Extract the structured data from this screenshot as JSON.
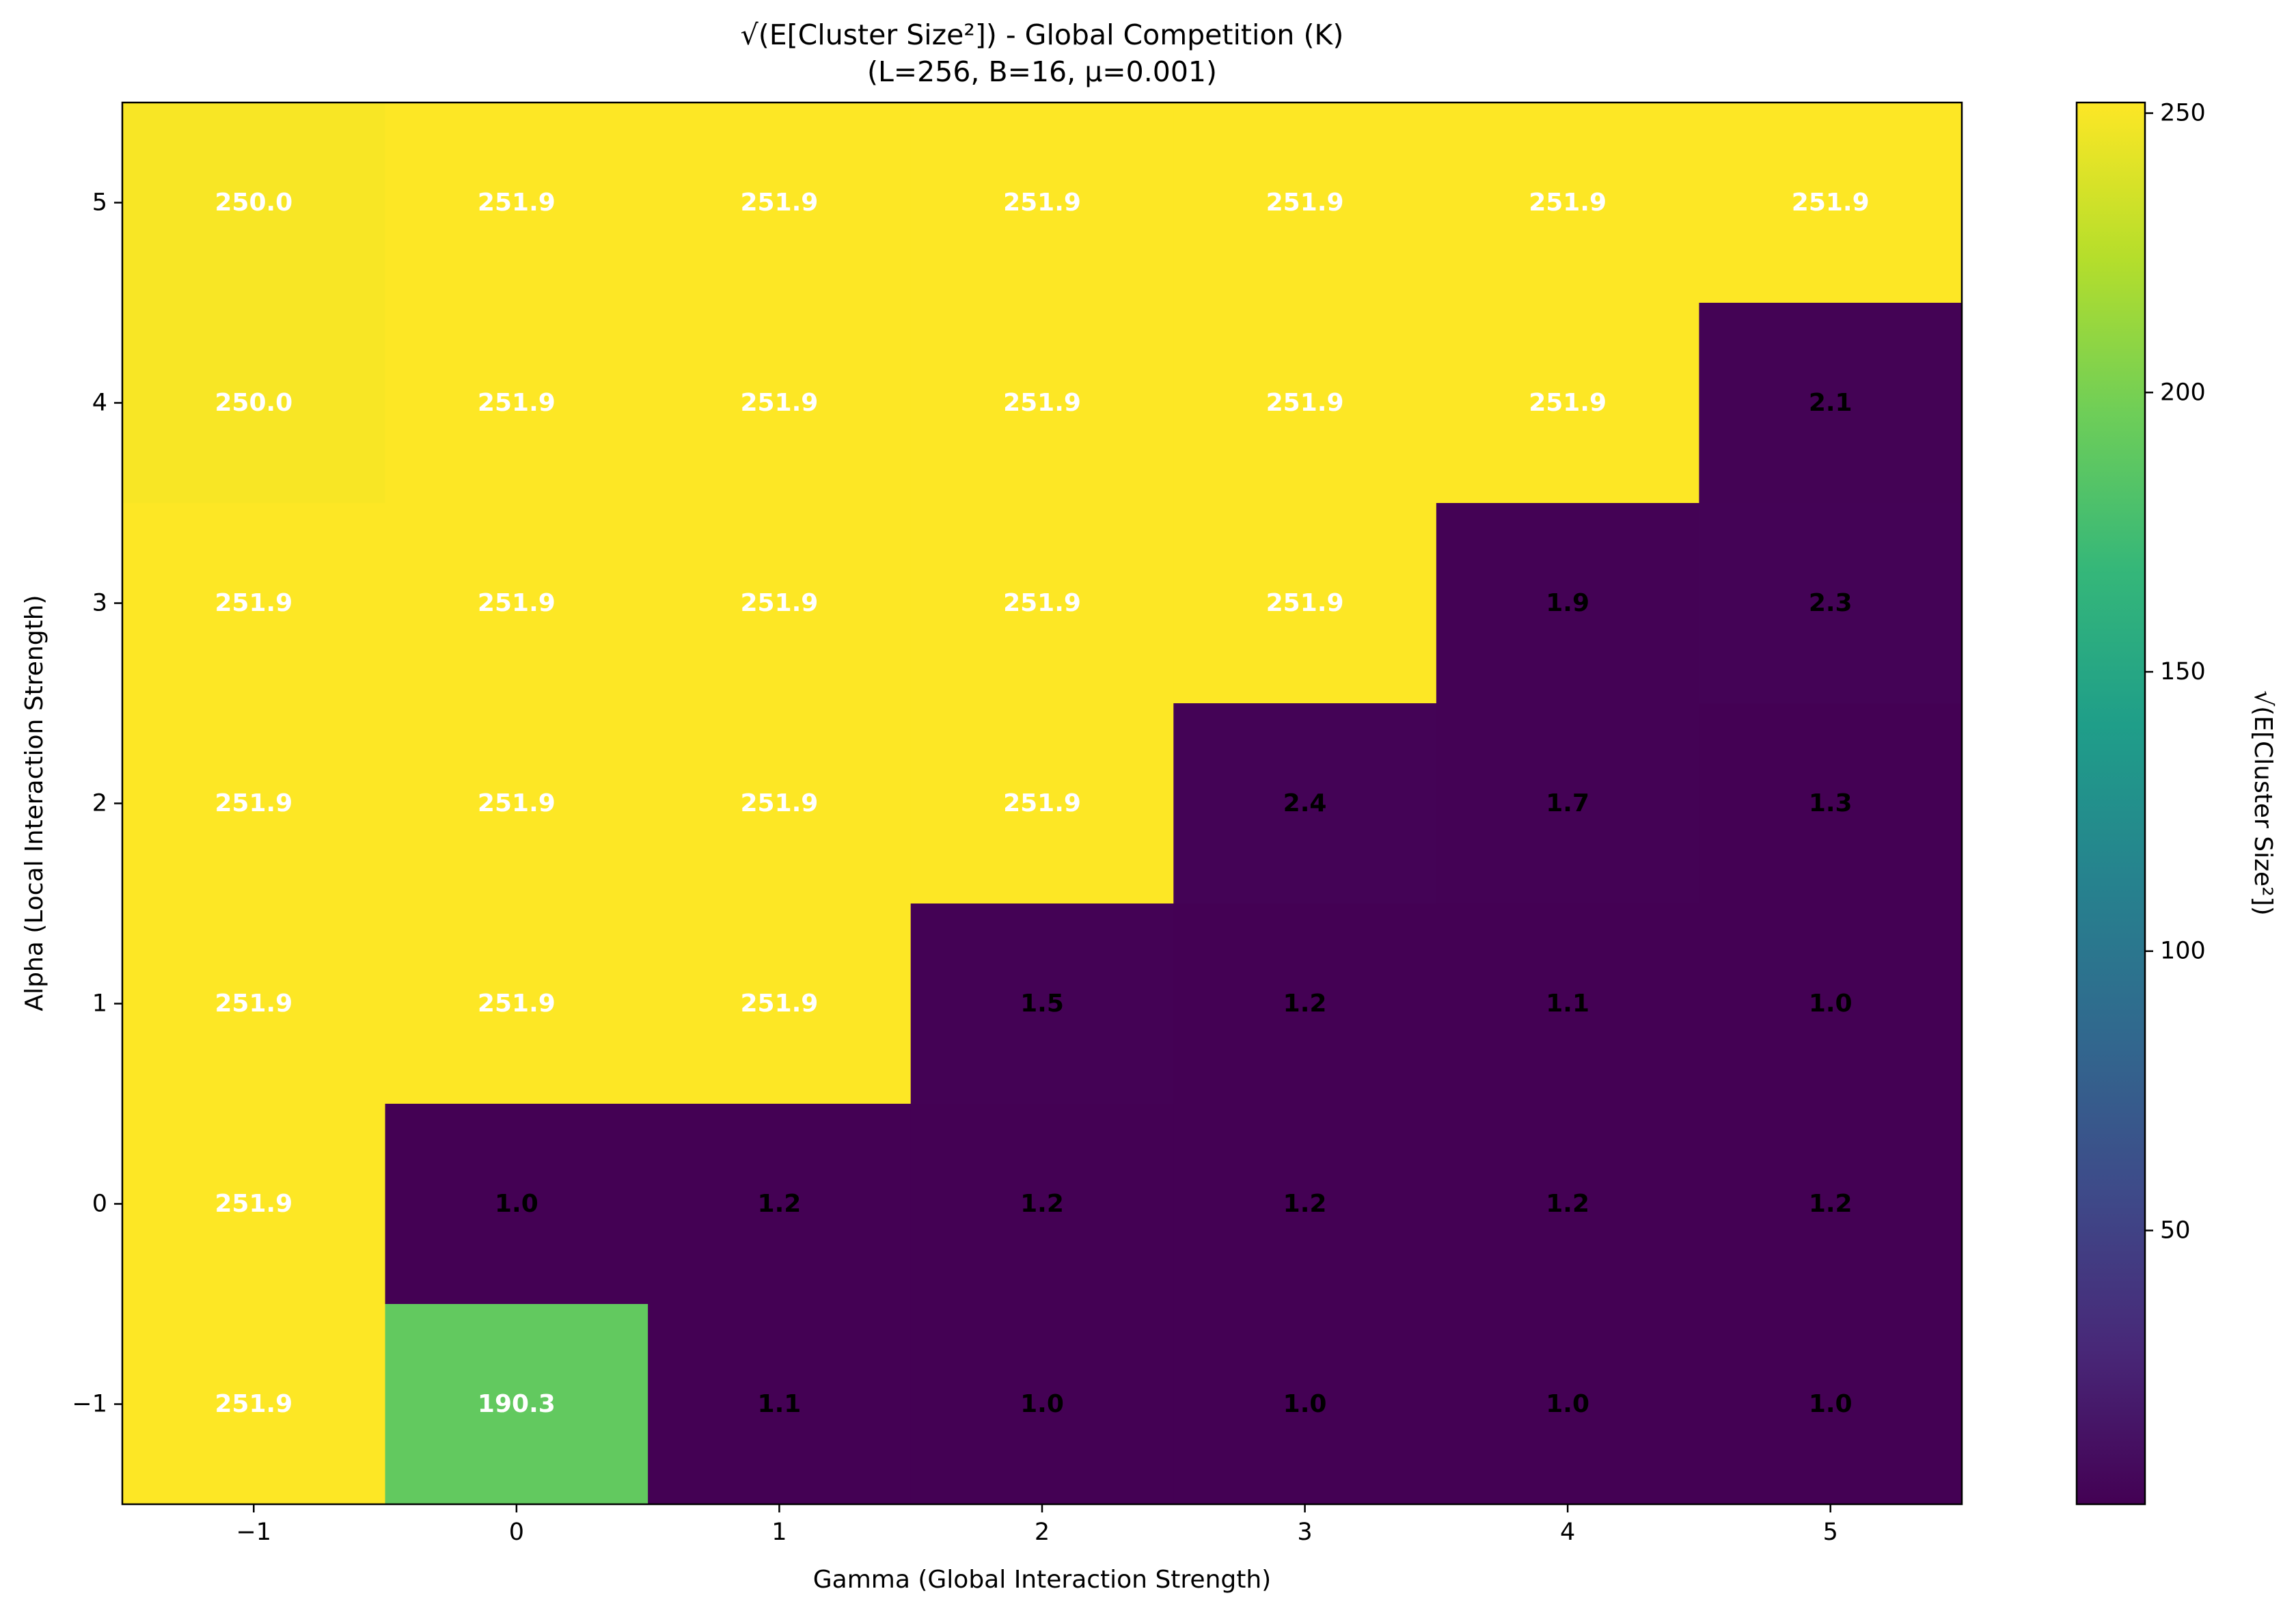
{
  "chart_data": {
    "type": "heatmap",
    "title": "√(E[Cluster Size²]) - Global Competition (K)",
    "subtitle": "(L=256, B=16, μ=0.001)",
    "xlabel": "Gamma (Global Interaction Strength)",
    "ylabel": "Alpha (Local Interaction Strength)",
    "x": [
      -1,
      0,
      1,
      2,
      3,
      4,
      5
    ],
    "y": [
      5,
      4,
      3,
      2,
      1,
      0,
      -1
    ],
    "x_tick_labels": [
      "−1",
      "0",
      "1",
      "2",
      "3",
      "4",
      "5"
    ],
    "y_tick_labels": [
      "5",
      "4",
      "3",
      "2",
      "1",
      "0",
      "−1"
    ],
    "values": [
      [
        250.0,
        251.9,
        251.9,
        251.9,
        251.9,
        251.9,
        251.9
      ],
      [
        250.0,
        251.9,
        251.9,
        251.9,
        251.9,
        251.9,
        2.1
      ],
      [
        251.9,
        251.9,
        251.9,
        251.9,
        251.9,
        1.9,
        2.3
      ],
      [
        251.9,
        251.9,
        251.9,
        251.9,
        2.4,
        1.7,
        1.3
      ],
      [
        251.9,
        251.9,
        251.9,
        1.5,
        1.2,
        1.1,
        1.0
      ],
      [
        251.9,
        1.0,
        1.2,
        1.2,
        1.2,
        1.2,
        1.2
      ],
      [
        251.9,
        190.3,
        1.1,
        1.0,
        1.0,
        1.0,
        1.0
      ]
    ],
    "cell_labels": [
      [
        "250.0",
        "251.9",
        "251.9",
        "251.9",
        "251.9",
        "251.9",
        "251.9"
      ],
      [
        "250.0",
        "251.9",
        "251.9",
        "251.9",
        "251.9",
        "251.9",
        "2.1"
      ],
      [
        "251.9",
        "251.9",
        "251.9",
        "251.9",
        "251.9",
        "1.9",
        "2.3"
      ],
      [
        "251.9",
        "251.9",
        "251.9",
        "251.9",
        "2.4",
        "1.7",
        "1.3"
      ],
      [
        "251.9",
        "251.9",
        "251.9",
        "1.5",
        "1.2",
        "1.1",
        "1.0"
      ],
      [
        "251.9",
        "1.0",
        "1.2",
        "1.2",
        "1.2",
        "1.2",
        "1.2"
      ],
      [
        "251.9",
        "190.3",
        "1.1",
        "1.0",
        "1.0",
        "1.0",
        "1.0"
      ]
    ],
    "colormap": "viridis",
    "vmin": 1.0,
    "vmax": 251.9,
    "colorbar": {
      "label": "√(E[Cluster Size²])",
      "ticks": [
        50,
        100,
        150,
        200,
        250
      ],
      "tick_labels": [
        "50",
        "100",
        "150",
        "200",
        "250"
      ]
    },
    "grid": false
  }
}
